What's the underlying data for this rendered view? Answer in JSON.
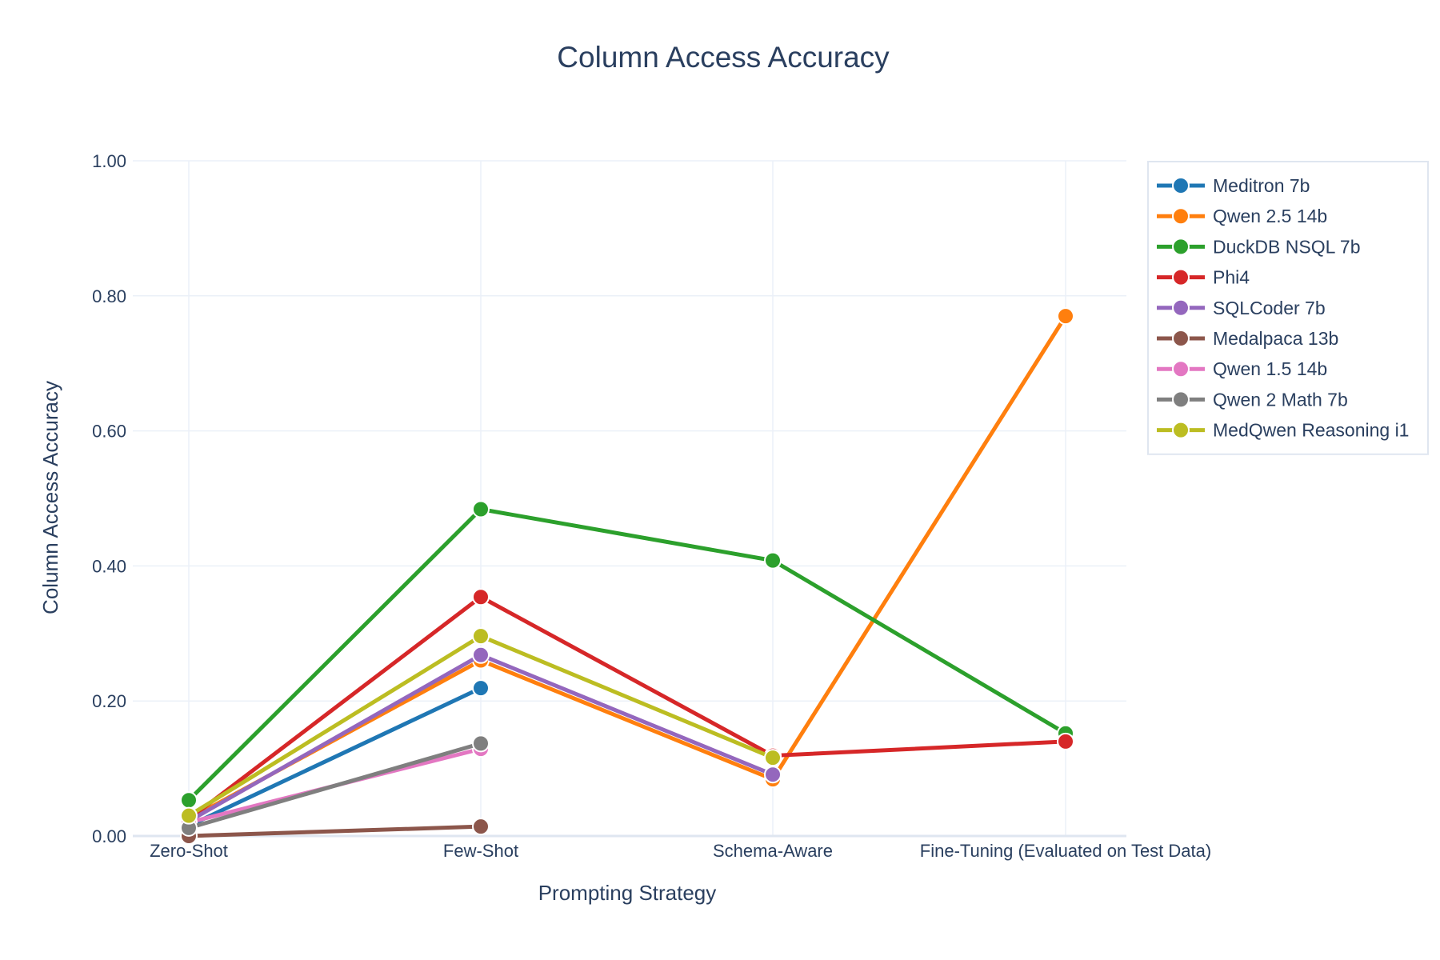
{
  "chart_data": {
    "type": "line",
    "title": "Column Access Accuracy",
    "xlabel": "Prompting Strategy",
    "ylabel": "Column Access Accuracy",
    "categories": [
      "Zero-Shot",
      "Few-Shot",
      "Schema-Aware",
      "Fine-Tuning (Evaluated on Test Data)"
    ],
    "ylim": [
      0,
      1
    ],
    "yticks": [
      "0.00",
      "0.20",
      "0.40",
      "0.60",
      "0.80",
      "1.00"
    ],
    "grid": true,
    "legend_position": "top-right",
    "series": [
      {
        "name": "Meditron 7b",
        "color": "#1f77b4",
        "values": [
          0.015,
          0.219,
          null,
          null
        ]
      },
      {
        "name": "Qwen 2.5 14b",
        "color": "#ff7f0e",
        "values": [
          0.025,
          0.26,
          0.084,
          0.77
        ]
      },
      {
        "name": "DuckDB NSQL 7b",
        "color": "#2ca02c",
        "values": [
          0.053,
          0.484,
          0.408,
          0.152
        ]
      },
      {
        "name": "Phi4",
        "color": "#d62728",
        "values": [
          0.025,
          0.354,
          0.119,
          0.14
        ]
      },
      {
        "name": "SQLCoder 7b",
        "color": "#9467bd",
        "values": [
          0.022,
          0.268,
          0.091,
          null
        ]
      },
      {
        "name": "Medalpaca 13b",
        "color": "#8c564b",
        "values": [
          0.0,
          0.014,
          null,
          null
        ]
      },
      {
        "name": "Qwen 1.5 14b",
        "color": "#e377c2",
        "values": [
          0.02,
          0.129,
          null,
          null
        ]
      },
      {
        "name": "Qwen 2 Math 7b",
        "color": "#7f7f7f",
        "values": [
          0.012,
          0.137,
          null,
          null
        ]
      },
      {
        "name": "MedQwen Reasoning i1",
        "color": "#bcbd22",
        "values": [
          0.03,
          0.296,
          0.116,
          null
        ]
      }
    ]
  }
}
